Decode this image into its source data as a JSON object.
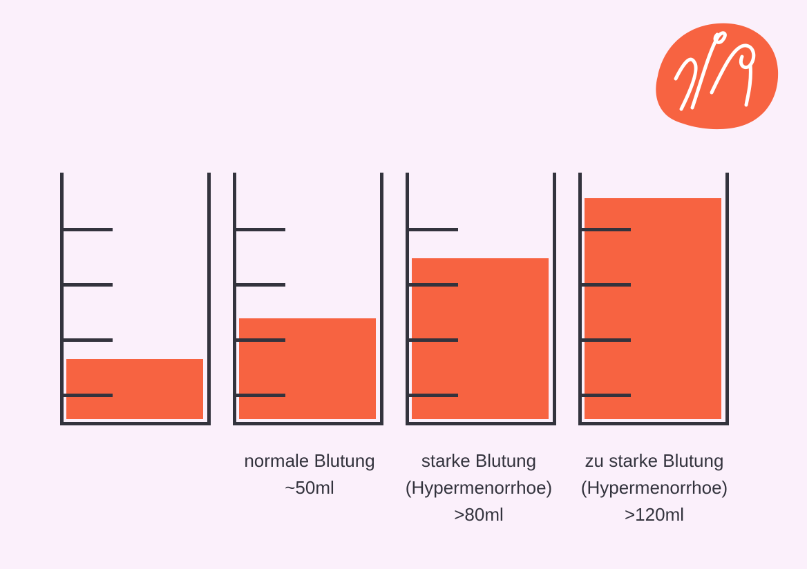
{
  "colors": {
    "background": "#fbf0fb",
    "liquid": "#f76341",
    "outline": "#33333d",
    "logo": "#f76341"
  },
  "logo": {
    "icon": "m-brand-logo"
  },
  "beakers": [
    {
      "fill_fraction": 0.25,
      "lines": []
    },
    {
      "fill_fraction": 0.42,
      "lines": [
        "normale Blutung",
        "~50ml"
      ]
    },
    {
      "fill_fraction": 0.67,
      "lines": [
        "starke Blutung",
        "(Hypermenorrhoe)",
        ">80ml"
      ]
    },
    {
      "fill_fraction": 0.92,
      "lines": [
        "zu starke Blutung",
        "(Hypermenorrhoe)",
        ">120ml"
      ]
    }
  ]
}
